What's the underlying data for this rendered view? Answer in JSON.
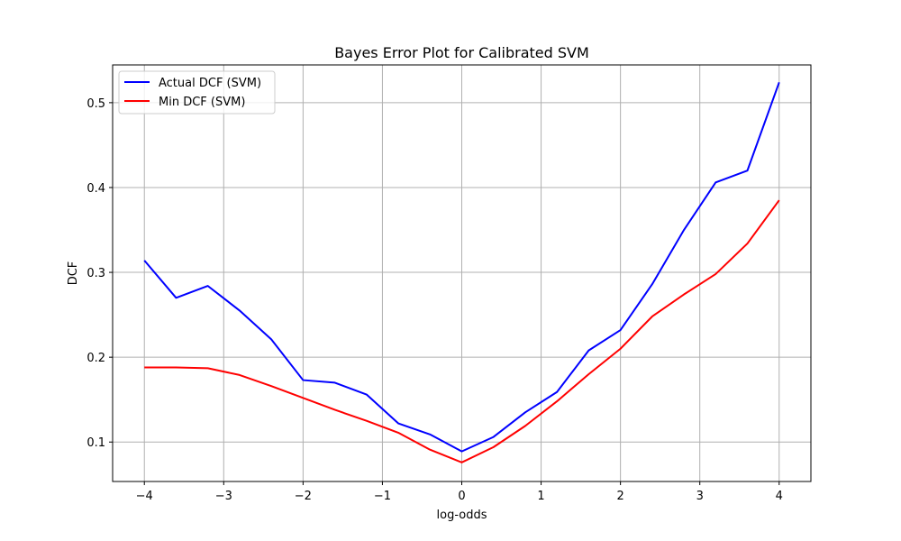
{
  "chart_data": {
    "type": "line",
    "title": "Bayes Error Plot for Calibrated SVM",
    "xlabel": "log-odds",
    "ylabel": "DCF",
    "xlim": [
      -4.4,
      4.4
    ],
    "ylim": [
      0.0535,
      0.5445
    ],
    "xticks": [
      -4,
      -3,
      -2,
      -1,
      0,
      1,
      2,
      3,
      4
    ],
    "xtick_labels": [
      "−4",
      "−3",
      "−2",
      "−1",
      "0",
      "1",
      "2",
      "3",
      "4"
    ],
    "yticks": [
      0.1,
      0.2,
      0.3,
      0.4,
      0.5
    ],
    "ytick_labels": [
      "0.1",
      "0.2",
      "0.3",
      "0.4",
      "0.5"
    ],
    "grid": true,
    "legend_position": "top-left",
    "x": [
      -4.0,
      -3.6,
      -3.2,
      -2.8,
      -2.4,
      -2.0,
      -1.6,
      -1.2,
      -0.8,
      -0.4,
      0.0,
      0.4,
      0.8,
      1.2,
      1.6,
      2.0,
      2.4,
      2.8,
      3.2,
      3.6,
      4.0
    ],
    "series": [
      {
        "name": "Actual DCF (SVM)",
        "color": "#0000ff",
        "values": [
          0.314,
          0.27,
          0.284,
          0.255,
          0.221,
          0.173,
          0.17,
          0.156,
          0.122,
          0.109,
          0.089,
          0.106,
          0.135,
          0.159,
          0.208,
          0.232,
          0.286,
          0.35,
          0.406,
          0.42,
          0.524
        ]
      },
      {
        "name": "Min DCF (SVM)",
        "color": "#ff0000",
        "values": [
          0.188,
          0.188,
          0.187,
          0.179,
          0.166,
          0.152,
          0.138,
          0.125,
          0.111,
          0.091,
          0.076,
          0.094,
          0.119,
          0.148,
          0.18,
          0.21,
          0.248,
          0.274,
          0.298,
          0.334,
          0.385
        ]
      }
    ]
  }
}
